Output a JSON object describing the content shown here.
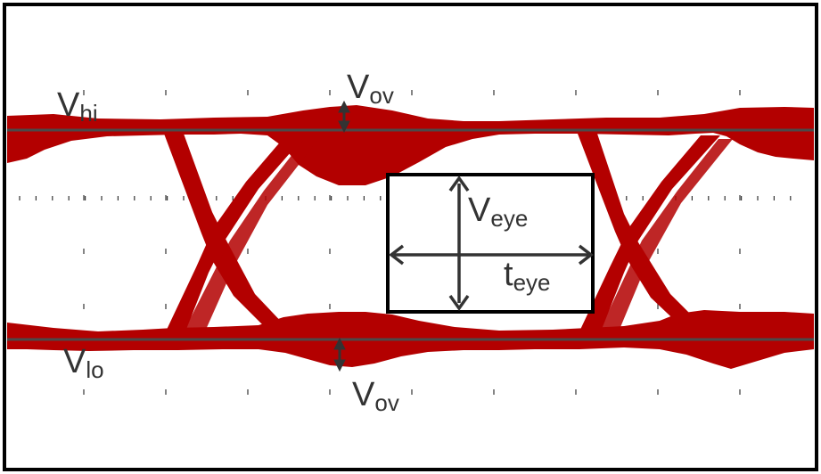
{
  "labels": {
    "v_hi": {
      "main": "V",
      "sub": "hi"
    },
    "v_lo": {
      "main": "V",
      "sub": "lo"
    },
    "v_ov_top": {
      "main": "V",
      "sub": "ov"
    },
    "v_ov_bottom": {
      "main": "V",
      "sub": "ov"
    },
    "v_eye": {
      "main": "V",
      "sub": "eye"
    },
    "t_eye": {
      "main": "t",
      "sub": "eye"
    }
  },
  "colors": {
    "trace": "#b30000",
    "reference_line": "#4a4a4a",
    "frame": "#000000",
    "grid": "#333333",
    "annotation": "#333333"
  }
}
